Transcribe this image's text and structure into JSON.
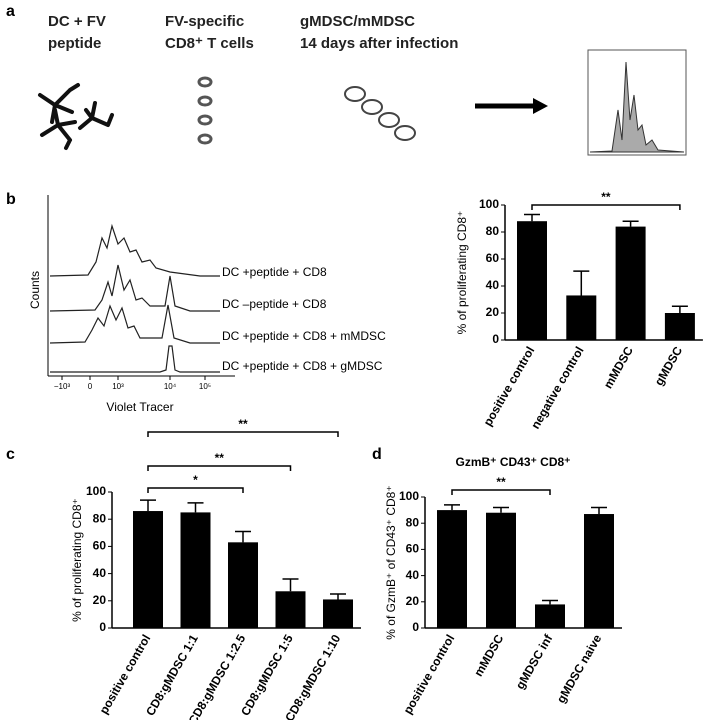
{
  "panel_labels": [
    "a",
    "b",
    "c",
    "d"
  ],
  "diagram": {
    "steps": [
      [
        "DC + FV",
        "peptide"
      ],
      [
        "FV-specific",
        "CD8⁺ T cells"
      ],
      [
        "gMDSC/mMDSC",
        "14 days after infection"
      ]
    ]
  },
  "histogram": {
    "x_label": "Violet Tracer",
    "y_label": "Counts",
    "xtick_labels": [
      "−10³",
      "0",
      "10³",
      "10⁴",
      "10⁵"
    ],
    "series_labels": [
      "DC +peptide + CD8",
      "DC –peptide + CD8",
      "DC +peptide + CD8 + mMDSC",
      "DC +peptide + CD8 + gMDSC"
    ]
  },
  "chart_data": [
    {
      "type": "bar",
      "y_label": "% of proliferating CD8⁺",
      "categories": [
        "positive control",
        "negative control",
        "mMDSC",
        "gMDSC"
      ],
      "values": [
        88,
        33,
        84,
        20
      ],
      "errors": [
        5,
        18,
        4,
        5
      ],
      "color": "#000000",
      "ylim": [
        0,
        100
      ],
      "yticks": [
        0,
        20,
        40,
        60,
        80,
        100
      ],
      "annotations": [
        {
          "text": "**",
          "between": [
            "positive control",
            "gMDSC"
          ]
        }
      ]
    },
    {
      "type": "bar",
      "y_label": "% of proliferating CD8⁺",
      "categories": [
        "positive control",
        "CD8:gMDSC 1:1",
        "CD8:gMDSC 1:2.5",
        "CD8:gMDSC 1:5",
        "CD8:gMDSC 1:10"
      ],
      "values": [
        86,
        85,
        63,
        27,
        21
      ],
      "errors": [
        8,
        7,
        8,
        9,
        4
      ],
      "color": "#000000",
      "ylim": [
        0,
        100
      ],
      "yticks": [
        0,
        20,
        40,
        60,
        80,
        100
      ],
      "annotations": [
        {
          "text": "*",
          "between": [
            "positive control",
            "CD8:gMDSC 1:2.5"
          ]
        },
        {
          "text": "**",
          "between": [
            "positive control",
            "CD8:gMDSC 1:5"
          ]
        },
        {
          "text": "**",
          "between": [
            "positive control",
            "CD8:gMDSC 1:10"
          ]
        }
      ]
    },
    {
      "type": "bar",
      "title": "GzmB⁺ CD43⁺ CD8⁺",
      "y_label": "% of GzmB⁺ of CD43⁺ CD8⁺",
      "categories": [
        "positive control",
        "mMDSC",
        "gMDSC inf",
        "gMDSC naive"
      ],
      "values": [
        90,
        88,
        18,
        87
      ],
      "errors": [
        4,
        4,
        3,
        5
      ],
      "color": "#000000",
      "ylim": [
        0,
        100
      ],
      "yticks": [
        0,
        20,
        40,
        60,
        80,
        100
      ],
      "annotations": [
        {
          "text": "**",
          "between": [
            "positive control",
            "gMDSC inf"
          ]
        }
      ]
    }
  ]
}
